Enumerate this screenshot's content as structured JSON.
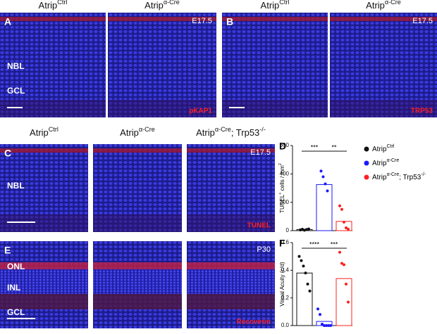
{
  "panels": [
    {
      "letter": "A",
      "stage": "E17.5",
      "marker": "pKAP1",
      "layers": [
        "NBL",
        "GCL"
      ],
      "headers": [
        [
          {
            "text": "Atrip"
          },
          {
            "text": "Ctrl",
            "sup": true
          }
        ],
        [
          {
            "text": "Atrip"
          },
          {
            "text": "α-Cre",
            "sup": true
          }
        ]
      ]
    },
    {
      "letter": "B",
      "stage": "E17.5",
      "marker": "TRP53",
      "layers": [],
      "headers": [
        [
          {
            "text": "Atrip"
          },
          {
            "text": "Ctrl",
            "sup": true
          }
        ],
        [
          {
            "text": "Atrip"
          },
          {
            "text": "α-Cre",
            "sup": true
          }
        ]
      ]
    },
    {
      "letter": "C",
      "stage": "E17.5",
      "marker": "TUNEL",
      "layers": [
        "NBL"
      ],
      "headers": [
        [
          {
            "text": "Atrip"
          },
          {
            "text": "Ctrl",
            "sup": true
          }
        ],
        [
          {
            "text": "Atrip"
          },
          {
            "text": "α-Cre",
            "sup": true
          }
        ],
        [
          {
            "text": "Atrip"
          },
          {
            "text": "α-Cre",
            "sup": true
          },
          {
            "text": "; Trp53"
          },
          {
            "text": "-/-",
            "sup": true
          }
        ]
      ]
    },
    {
      "letter": "E",
      "stage": "P30",
      "marker": "Recoverin",
      "layers": [
        "ONL",
        "INL",
        "GCL"
      ],
      "headers": []
    }
  ],
  "chart_data": [
    {
      "type": "bar",
      "letter": "D",
      "ylabel": [
        {
          "text": "TUNEL"
        },
        {
          "text": "+",
          "sup": true
        },
        {
          "text": " cells / mm"
        },
        {
          "text": "2",
          "sup": true
        }
      ],
      "ylim": [
        0,
        600
      ],
      "yticks": [
        0,
        200,
        400,
        600
      ],
      "annotations": [
        "***",
        "**"
      ],
      "series": [
        {
          "name": [
            {
              "text": "Atrip"
            },
            {
              "text": "Ctrl",
              "sup": true
            }
          ],
          "color": "#111111",
          "values": [
            8
          ],
          "points": [
            5,
            10,
            3,
            8,
            12
          ]
        },
        {
          "name": [
            {
              "text": "Atrip"
            },
            {
              "text": "α-Cre",
              "sup": true
            }
          ],
          "color": "#1a1aff",
          "values": [
            325
          ],
          "points": [
            420,
            380,
            330,
            280
          ]
        },
        {
          "name": [
            {
              "text": "Atrip"
            },
            {
              "text": "α-Cre",
              "sup": true
            },
            {
              "text": "; Trp53"
            },
            {
              "text": "-/-",
              "sup": true
            }
          ],
          "color": "#ff2020",
          "values": [
            65
          ],
          "points": [
            175,
            150,
            60,
            20,
            10
          ]
        }
      ]
    },
    {
      "type": "bar",
      "letter": "F",
      "ylabel": [
        {
          "text": "Visual Acuity (c/d)"
        }
      ],
      "ylim": [
        0,
        0.6
      ],
      "yticks": [
        {
          "value": 0,
          "label": "0.0"
        },
        0.2,
        0.4,
        0.6
      ],
      "annotations": [
        "****",
        "***"
      ],
      "series": [
        {
          "color": "#111111",
          "values": [
            0.38
          ],
          "points": [
            0.5,
            0.47,
            0.43,
            0.38,
            0.3,
            0.25
          ]
        },
        {
          "color": "#1a1aff",
          "values": [
            0.03
          ],
          "points": [
            0.12,
            0.08,
            0.01,
            0,
            0,
            0,
            0
          ]
        },
        {
          "color": "#ff2020",
          "values": [
            0.34
          ],
          "points": [
            0.53,
            0.45,
            0.44,
            0.3,
            0.17
          ]
        }
      ]
    }
  ]
}
